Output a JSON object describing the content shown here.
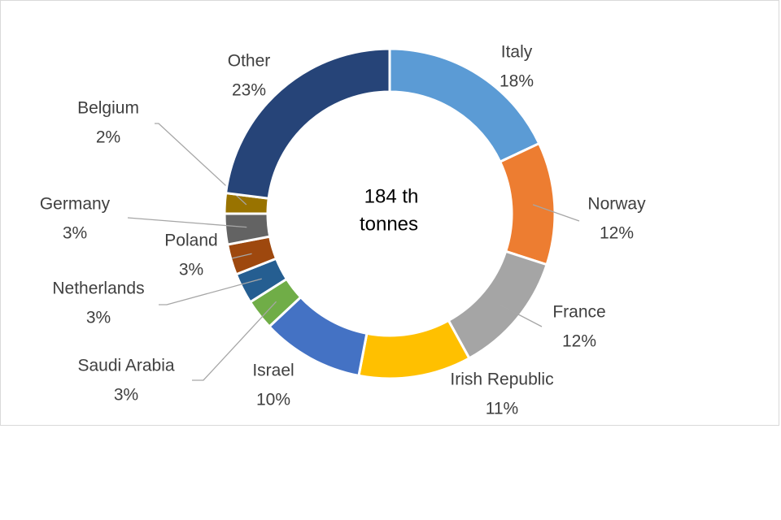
{
  "chart_data": {
    "type": "donut",
    "center_label": [
      "184 th",
      "tonnes"
    ],
    "categories": [
      "Italy",
      "Norway",
      "France",
      "Irish Republic",
      "Israel",
      "Saudi Arabia",
      "Netherlands",
      "Poland",
      "Germany",
      "Belgium",
      "Other"
    ],
    "values": [
      18,
      12,
      12,
      11,
      10,
      3,
      3,
      3,
      3,
      2,
      23
    ],
    "value_labels": [
      "18%",
      "12%",
      "12%",
      "11%",
      "10%",
      "3%",
      "3%",
      "3%",
      "3%",
      "2%",
      "23%"
    ],
    "colors": [
      "#5b9bd5",
      "#ed7d31",
      "#a5a5a5",
      "#ffc000",
      "#4472c4",
      "#70ad47",
      "#255e91",
      "#9e480e",
      "#636363",
      "#997300",
      "#264478"
    ]
  }
}
